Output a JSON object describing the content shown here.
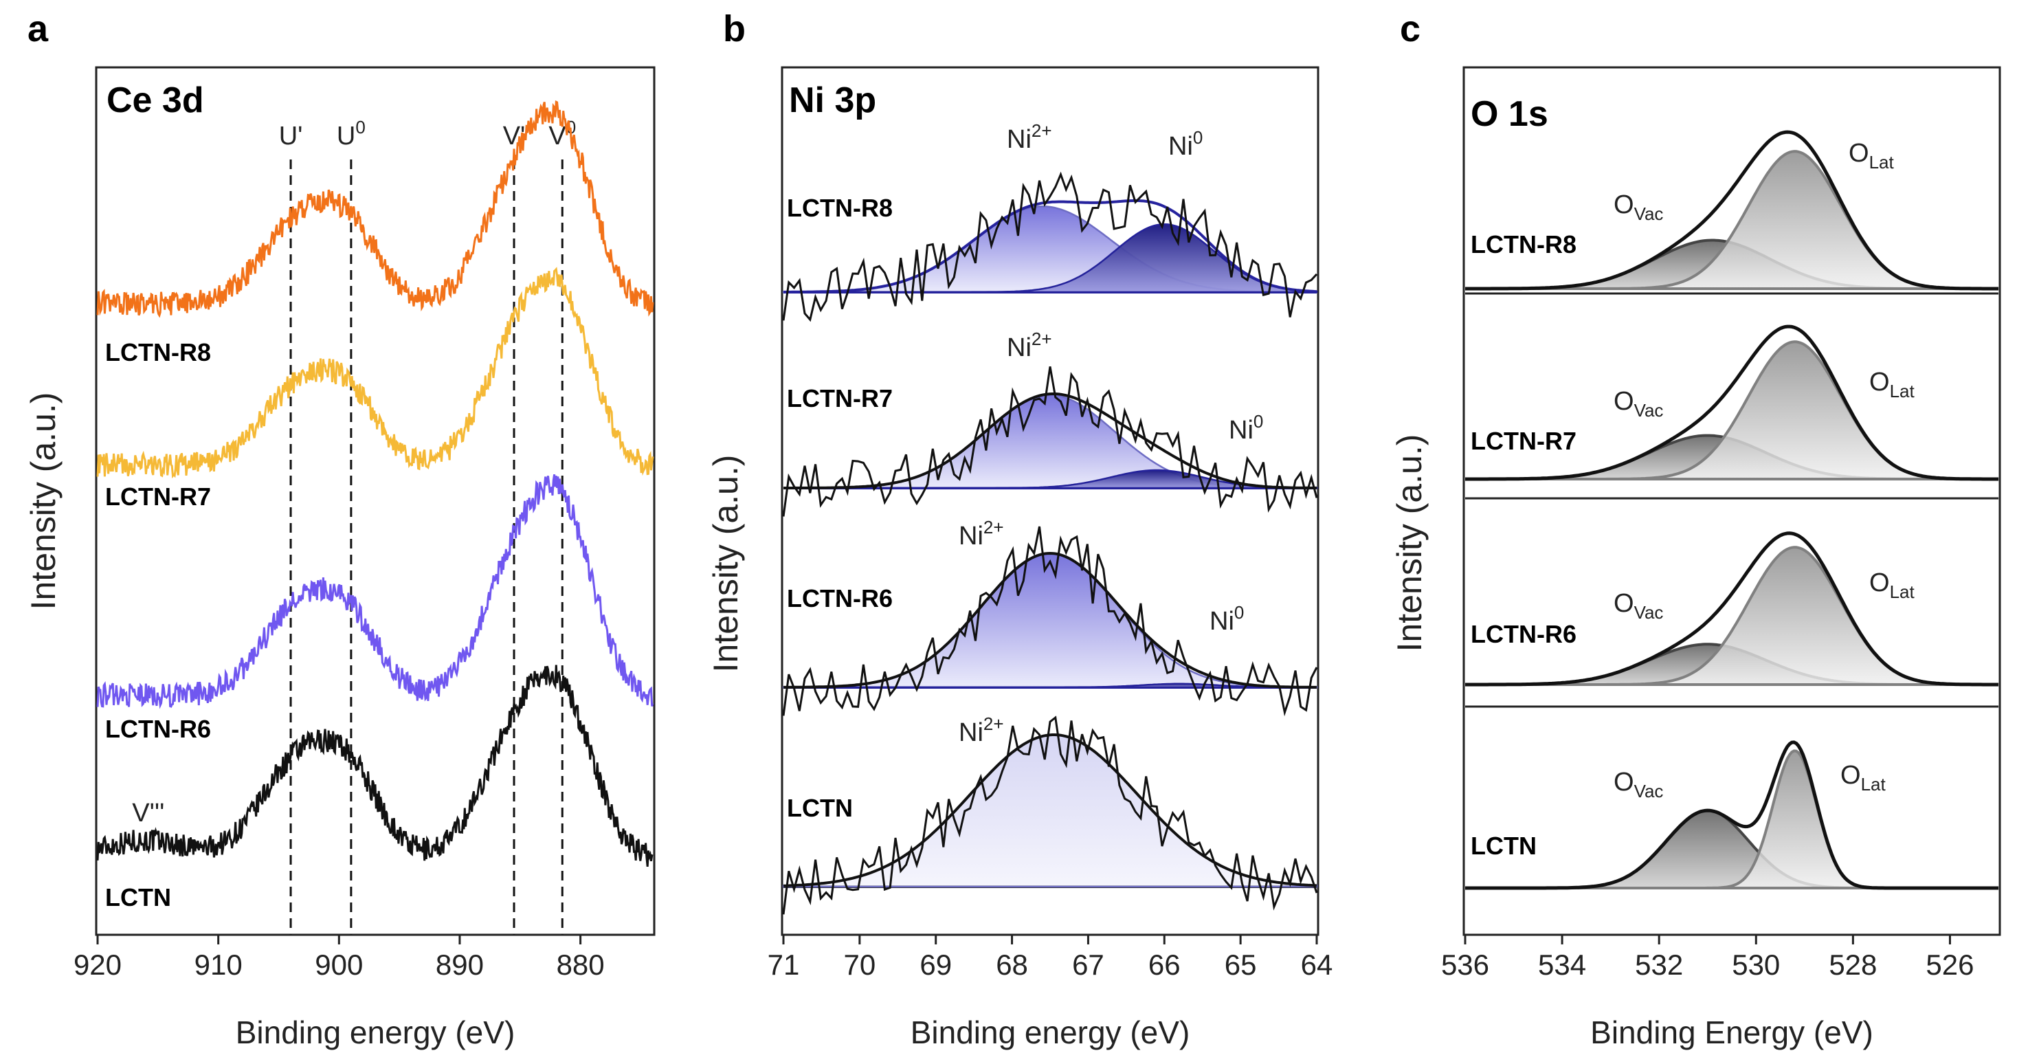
{
  "figure": {
    "panels": [
      "a",
      "b",
      "c"
    ]
  },
  "chart_data": [
    {
      "type": "line",
      "panel_label": "a",
      "title": "Ce 3d",
      "xlabel": "Binding energy (eV)",
      "ylabel": "Intensity (a.u.)",
      "xlim": [
        920,
        874
      ],
      "x_reversed": true,
      "xticks": [
        "920",
        "910",
        "900",
        "890",
        "880"
      ],
      "stacked": true,
      "series": [
        {
          "name": "LCTN",
          "color": "#111111",
          "baseline": 0,
          "peaks": [
            [
              903.5,
              0.75,
              3
            ],
            [
              899,
              0.6,
              2.5
            ],
            [
              885,
              1.05,
              3
            ],
            [
              881,
              0.95,
              2.5
            ],
            [
              916,
              0.12,
              3
            ]
          ]
        },
        {
          "name": "LCTN-R6",
          "color": "#7057f0",
          "baseline": 1,
          "peaks": [
            [
              903.5,
              0.7,
              3
            ],
            [
              899,
              0.55,
              2.5
            ],
            [
              885,
              1.15,
              3
            ],
            [
              881,
              1.15,
              2.5
            ]
          ]
        },
        {
          "name": "LCTN-R7",
          "color": "#f5b936",
          "baseline": 2,
          "peaks": [
            [
              903.5,
              0.62,
              3
            ],
            [
              899,
              0.5,
              2.5
            ],
            [
              885,
              1.05,
              3
            ],
            [
              881,
              1.0,
              2.5
            ]
          ]
        },
        {
          "name": "LCTN-R8",
          "color": "#f27219",
          "baseline": 3,
          "peaks": [
            [
              903.5,
              0.65,
              3
            ],
            [
              899,
              0.55,
              2.5
            ],
            [
              885,
              1.05,
              3
            ],
            [
              881,
              1.05,
              2.5
            ]
          ]
        }
      ],
      "reference_lines": [
        {
          "label": "U'",
          "x": 904
        },
        {
          "label": "U",
          "sup": "0",
          "x": 899
        },
        {
          "label": "V'",
          "x": 885.5
        },
        {
          "label": "V",
          "sup": "0",
          "x": 881.5
        }
      ],
      "annotations": [
        {
          "text": "V'''",
          "x": 916
        }
      ]
    },
    {
      "type": "line",
      "panel_label": "b",
      "title": "Ni 3p",
      "xlabel": "Binding energy (eV)",
      "ylabel": "Intensity (a.u.)",
      "xlim": [
        71,
        64
      ],
      "x_reversed": true,
      "xticks": [
        "71",
        "70",
        "69",
        "68",
        "67",
        "66",
        "65",
        "64"
      ],
      "stacked": true,
      "series": [
        {
          "name": "LCTN",
          "fit_components": [
            {
              "label": "Ni",
              "sup": "2+",
              "center": 67.45,
              "height": 0.85,
              "width": 1.1
            }
          ]
        },
        {
          "name": "LCTN-R6",
          "fit_components": [
            {
              "label": "Ni",
              "sup": "2+",
              "center": 67.5,
              "height": 0.75,
              "width": 0.9
            },
            {
              "label": "Ni",
              "sup": "0",
              "center": 65.8,
              "height": 0.02,
              "width": 0.5
            }
          ]
        },
        {
          "name": "LCTN-R7",
          "fit_components": [
            {
              "label": "Ni",
              "sup": "2+",
              "center": 67.5,
              "height": 0.52,
              "width": 0.85
            },
            {
              "label": "Ni",
              "sup": "0",
              "center": 66.1,
              "height": 0.1,
              "width": 0.6
            }
          ]
        },
        {
          "name": "LCTN-R8",
          "fit_components": [
            {
              "label": "Ni",
              "sup": "2+",
              "center": 67.6,
              "height": 0.48,
              "width": 0.9
            },
            {
              "label": "Ni",
              "sup": "0",
              "center": 66.0,
              "height": 0.38,
              "width": 0.65
            }
          ]
        }
      ]
    },
    {
      "type": "line",
      "panel_label": "c",
      "title": "O 1s",
      "xlabel": "Binding Energy (eV)",
      "ylabel": "Intensity (a.u.)",
      "xlim": [
        536,
        525
      ],
      "x_reversed": true,
      "xticks": [
        "536",
        "534",
        "532",
        "530",
        "528",
        "526"
      ],
      "stacked": true,
      "series": [
        {
          "name": "LCTN",
          "fit_components": [
            {
              "label": "O",
              "sub": "Vac",
              "center": 531.0,
              "height": 0.48,
              "width": 0.85
            },
            {
              "label": "O",
              "sub": "Lat",
              "center": 529.2,
              "height": 0.85,
              "width": 0.45
            }
          ]
        },
        {
          "name": "LCTN-R6",
          "fit_components": [
            {
              "label": "O",
              "sub": "Vac",
              "center": 531.0,
              "height": 0.25,
              "width": 1.2
            },
            {
              "label": "O",
              "sub": "Lat",
              "center": 529.2,
              "height": 0.85,
              "width": 0.95
            }
          ]
        },
        {
          "name": "LCTN-R7",
          "fit_components": [
            {
              "label": "O",
              "sub": "Vac",
              "center": 531.0,
              "height": 0.27,
              "width": 1.2
            },
            {
              "label": "O",
              "sub": "Lat",
              "center": 529.2,
              "height": 0.85,
              "width": 0.95
            }
          ]
        },
        {
          "name": "LCTN-R8",
          "fit_components": [
            {
              "label": "O",
              "sub": "Vac",
              "center": 530.9,
              "height": 0.3,
              "width": 1.2
            },
            {
              "label": "O",
              "sub": "Lat",
              "center": 529.2,
              "height": 0.85,
              "width": 0.95
            }
          ]
        }
      ]
    }
  ]
}
